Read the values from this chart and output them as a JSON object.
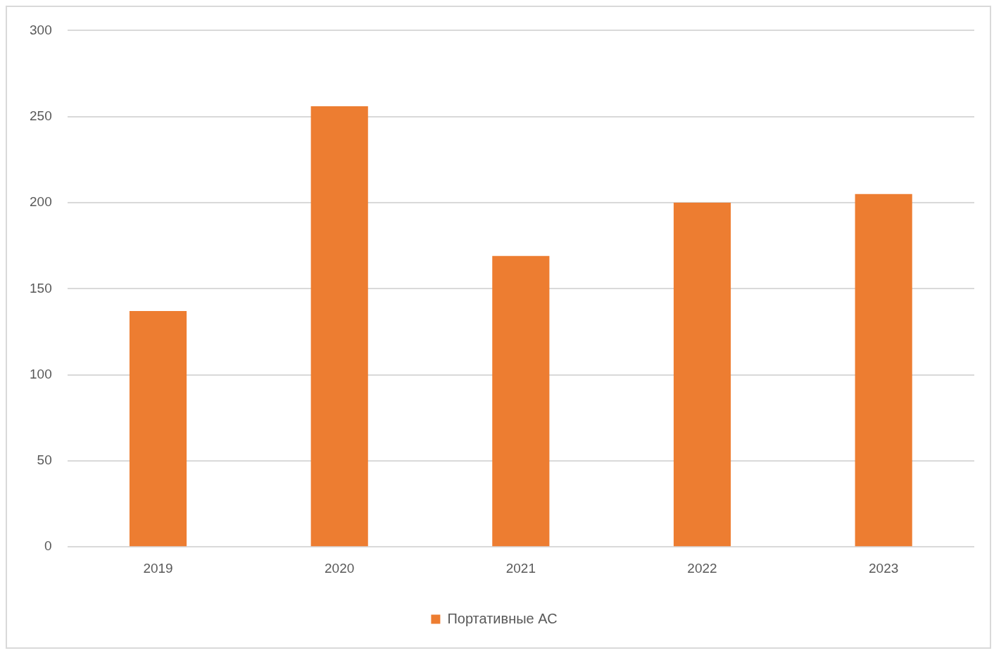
{
  "chart_data": {
    "type": "bar",
    "categories": [
      "2019",
      "2020",
      "2021",
      "2022",
      "2023"
    ],
    "series": [
      {
        "name": "Портативные АС",
        "color": "#ed7d31",
        "values": [
          137,
          256,
          169,
          200,
          205
        ]
      }
    ],
    "ylim": [
      0,
      300
    ],
    "yticks": [
      0,
      50,
      100,
      150,
      200,
      250,
      300
    ],
    "grid": "y",
    "legend": "bottom"
  }
}
